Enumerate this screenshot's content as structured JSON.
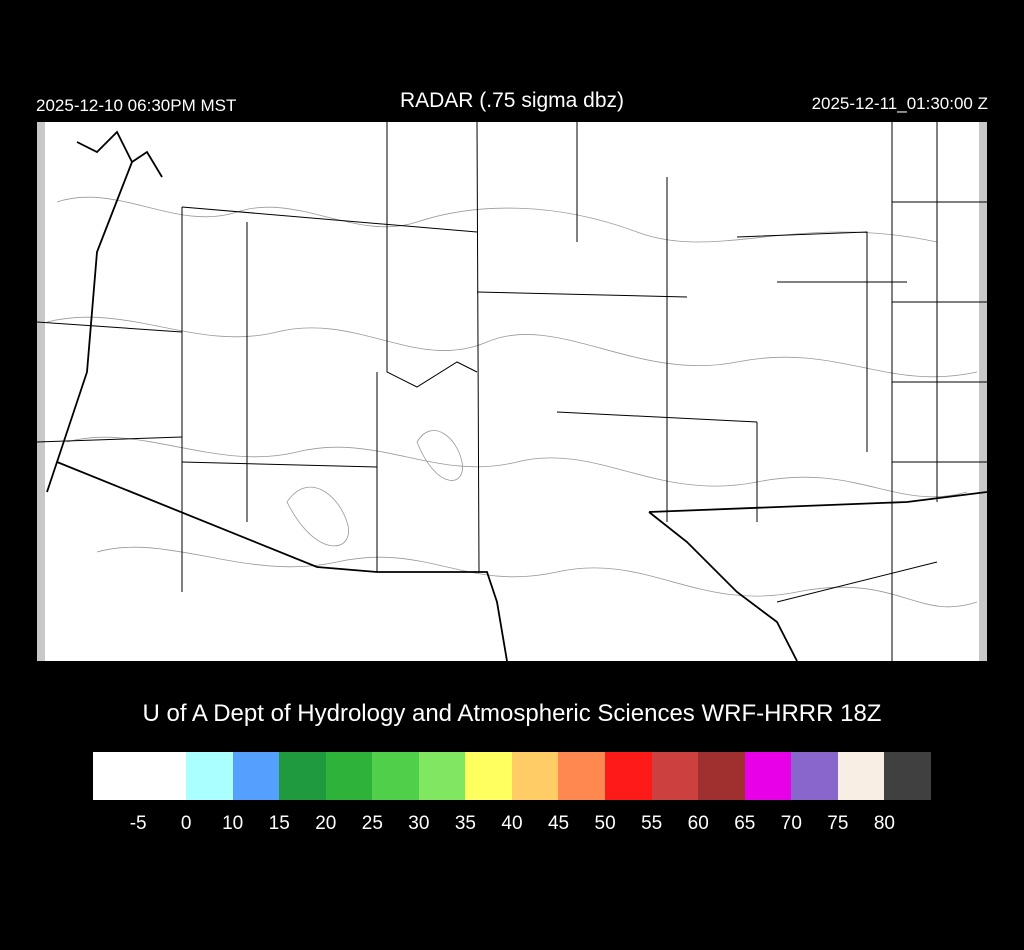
{
  "header": {
    "local_time": "2025-12-10 06:30PM MST",
    "title": "RADAR (.75 sigma dbz)",
    "utc_time": "2025-12-11_01:30:00 Z"
  },
  "credit": "U of A Dept of Hydrology and Atmospheric Sciences WRF-HRRR 18Z",
  "colorbar": {
    "colors": [
      "#ffffff",
      "#aaffff",
      "#55a0ff",
      "#1f9a3f",
      "#2eb23a",
      "#50d04a",
      "#80e860",
      "#ffff60",
      "#ffcc66",
      "#ff8850",
      "#ff1a1a",
      "#cc4040",
      "#a03030",
      "#e800e8",
      "#8866cc",
      "#f8eee4",
      "#404040"
    ],
    "labels": [
      "-5",
      "0",
      "10",
      "15",
      "20",
      "25",
      "30",
      "35",
      "40",
      "45",
      "50",
      "55",
      "60",
      "65",
      "70",
      "75",
      "80"
    ]
  }
}
